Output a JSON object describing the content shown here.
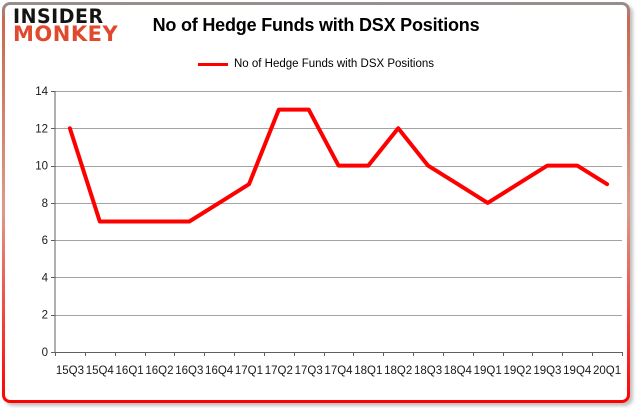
{
  "logo": {
    "line1": "INSIDER",
    "line2": "MONKEY"
  },
  "header": {
    "title": "No of Hedge Funds with DSX Positions"
  },
  "legend": {
    "label": "No of Hedge Funds with DSX Positions"
  },
  "chart_data": {
    "type": "line",
    "title": "No of Hedge Funds with DSX Positions",
    "categories": [
      "15Q3",
      "15Q4",
      "16Q1",
      "16Q2",
      "16Q3",
      "16Q4",
      "17Q1",
      "17Q2",
      "17Q3",
      "17Q4",
      "18Q1",
      "18Q2",
      "18Q3",
      "18Q4",
      "19Q1",
      "19Q2",
      "19Q3",
      "19Q4",
      "20Q1"
    ],
    "series": [
      {
        "name": "No of Hedge Funds with DSX Positions",
        "color": "#ff0000",
        "values": [
          12,
          7,
          7,
          7,
          7,
          8,
          9,
          13,
          13,
          10,
          10,
          12,
          10,
          9,
          8,
          9,
          10,
          10,
          9
        ]
      }
    ],
    "xlabel": "",
    "ylabel": "",
    "ylim": [
      0,
      14
    ],
    "yticks": [
      0,
      2,
      4,
      6,
      8,
      10,
      12,
      14
    ],
    "grid": true,
    "legend_position": "top"
  },
  "colors": {
    "line": "#ff0000",
    "logo_red": "#e0492e",
    "grid": "#a3a3a3",
    "axis": "#5f5f5f",
    "tick_text": "#1a1a1a",
    "border_top": "#919191",
    "border_bottom": "#ff0000"
  }
}
